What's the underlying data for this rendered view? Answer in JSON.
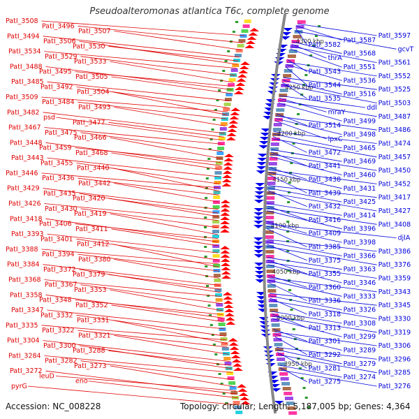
{
  "title": "Pseudoalteromonas atlantica T6c, complete genome",
  "footer": {
    "accession": "Accession: NC_008228",
    "topology": "Topology: circular; Length: 5,187,005 bp; Genes: 4,364"
  },
  "colors": {
    "left_labels": "#e00000",
    "right_labels": "#0000dd",
    "backbone": "#888888",
    "tick_dot": "#2a9a2a",
    "kbp_text": "#333333"
  },
  "kbp_marks": [
    "4300 kbp",
    "4250 kbp",
    "4200 kbp",
    "4150 kbp",
    "4100 kbp",
    "4050 kbp",
    "4000 kbp",
    "3950 kbp"
  ],
  "left_labels": [
    "PatI_3508",
    "PatI_3496",
    "PatI_3507",
    "PatI_3494",
    "PatI_3506",
    "PatI_3530",
    "PatI_3534",
    "PatI_3529",
    "PatI_3533",
    "PatI_3488",
    "PatI_3495",
    "PatI_3505",
    "PatI_3485",
    "PatI_3492",
    "PatI_3504",
    "PatI_3509",
    "PatI_3484",
    "PatI_3493",
    "PatI_3482",
    "psd",
    "PatI_3477",
    "PatI_3467",
    "PatI_3475",
    "PatI_3466",
    "PatI_3448",
    "PatI_3459",
    "PatI_3468",
    "PatI_3443",
    "PatI_3455",
    "PatI_3440",
    "PatI_3446",
    "PatI_3436",
    "PatI_3442",
    "PatI_3429",
    "PatI_3435",
    "PatI_3420",
    "PatI_3426",
    "PatI_3430",
    "PatI_3419",
    "PatI_3418",
    "PatI_3406",
    "PatI_3411",
    "PatI_3393",
    "PatI_3401",
    "PatI_3412",
    "PatI_3388",
    "PatI_3394",
    "PatI_3380",
    "PatI_3384",
    "PatI_3372",
    "PatI_3379",
    "PatI_3368",
    "PatI_3367",
    "PatI_3353",
    "PatI_3358",
    "PatI_3348",
    "PatI_3352",
    "PatI_3347",
    "PatI_3332",
    "PatI_3331",
    "PatI_3335",
    "PatI_3322",
    "PatI_3321",
    "PatI_3304",
    "PatI_3300",
    "PatI_3288",
    "PatI_3284",
    "PatI_3282",
    "PatI_3273",
    "PatI_3272",
    "leuD",
    "eno",
    "pyrG"
  ],
  "right_labels": [
    "PatI_3597",
    "PatI_3587",
    "PatI_3582",
    "gcvT",
    "PatI_3568",
    "thrA",
    "PatI_3561",
    "PatI_3551",
    "PatI_3543",
    "PatI_3552",
    "PatI_3536",
    "PatI_3544",
    "PatI_3525",
    "PatI_3516",
    "PatI_3535",
    "PatI_3503",
    "ddl",
    "mraY",
    "PatI_3487",
    "PatI_3499",
    "PatI_3514",
    "PatI_3486",
    "PatI_3498",
    "lpxC",
    "PatI_3474",
    "PatI_3465",
    "PatI_3472",
    "PatI_3457",
    "PatI_3469",
    "PatI_3441",
    "PatI_3450",
    "PatI_3460",
    "PatI_3438",
    "PatI_3452",
    "PatI_3431",
    "PatI_3439",
    "PatI_3417",
    "PatI_3425",
    "PatI_3432",
    "PatI_3427",
    "PatI_3414",
    "PatI_3416",
    "PatI_3408",
    "PatI_3396",
    "PatI_3409",
    "djlA",
    "PatI_3398",
    "PatI_3385",
    "PatI_3386",
    "PatI_3366",
    "PatI_3375",
    "PatI_3376",
    "PatI_3363",
    "PatI_3355",
    "PatI_3359",
    "PatI_3346",
    "PatI_3360",
    "PatI_3343",
    "PatI_3333",
    "PatI_3336",
    "PatI_3345",
    "PatI_3326",
    "PatI_3318",
    "PatI_3330",
    "PatI_3308",
    "PatI_3313",
    "PatI_3319",
    "PatI_3299",
    "PatI_3301",
    "PatI_3306",
    "PatI_3289",
    "PatI_3292",
    "PatI_3296",
    "PatI_3279",
    "PatI_3281",
    "PatI_3285",
    "PatI_3274",
    "PatI_3275",
    "PatI_3276"
  ]
}
